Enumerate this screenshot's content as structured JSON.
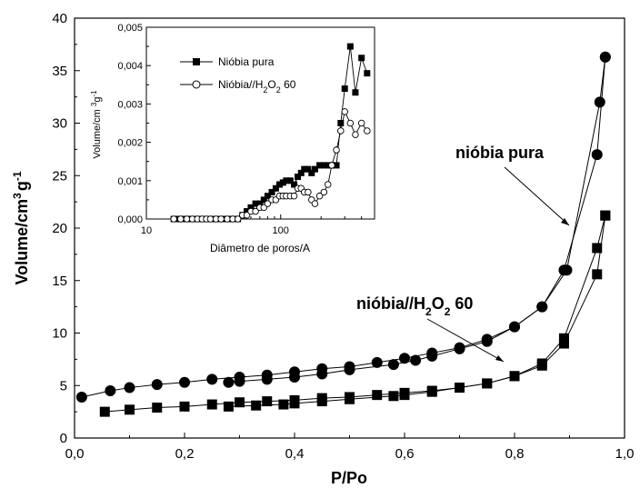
{
  "chart_data": [
    {
      "type": "scatter",
      "title": "",
      "xlabel": "P/Po",
      "ylabel_main": "Volume/cm",
      "ylabel_sup1": "3",
      "ylabel_mid": "g",
      "ylabel_sup2": "-1",
      "xlim": [
        0.0,
        1.0
      ],
      "ylim": [
        0,
        40
      ],
      "xticks": [
        0.0,
        0.2,
        0.4,
        0.6,
        0.8,
        1.0
      ],
      "xtick_labels": [
        "0,0",
        "0,2",
        "0,4",
        "0,6",
        "0,8",
        "1,0"
      ],
      "yticks": [
        0,
        5,
        10,
        15,
        20,
        25,
        30,
        35,
        40
      ],
      "ytick_labels": [
        "0",
        "5",
        "10",
        "15",
        "20",
        "25",
        "30",
        "35",
        "40"
      ],
      "grid": false,
      "series": [
        {
          "name": "nióbia pura",
          "marker": "circle-filled",
          "adsorption": {
            "x": [
              0.013,
              0.065,
              0.1,
              0.15,
              0.2,
              0.25,
              0.3,
              0.35,
              0.4,
              0.45,
              0.5,
              0.55,
              0.6,
              0.65,
              0.7,
              0.75,
              0.8,
              0.85,
              0.89,
              0.95,
              0.965
            ],
            "y": [
              3.9,
              4.5,
              4.8,
              5.1,
              5.3,
              5.6,
              5.8,
              6.0,
              6.3,
              6.6,
              6.8,
              7.2,
              7.6,
              8.1,
              8.6,
              9.4,
              10.6,
              12.5,
              16.0,
              27.0,
              36.3
            ]
          },
          "desorption": {
            "x": [
              0.965,
              0.955,
              0.895,
              0.85,
              0.8,
              0.75,
              0.7,
              0.65,
              0.62,
              0.58,
              0.5,
              0.45,
              0.4,
              0.35,
              0.3,
              0.28
            ],
            "y": [
              36.3,
              32.0,
              16.0,
              12.5,
              10.6,
              9.2,
              8.5,
              7.8,
              7.4,
              7.0,
              6.5,
              6.1,
              5.8,
              5.6,
              5.4,
              5.3
            ]
          },
          "annotation": "nióbia pura"
        },
        {
          "name": "nióbia//H2O2 60",
          "marker": "square-filled",
          "adsorption": {
            "x": [
              0.055,
              0.1,
              0.15,
              0.2,
              0.25,
              0.3,
              0.35,
              0.4,
              0.45,
              0.5,
              0.55,
              0.6,
              0.65,
              0.7,
              0.75,
              0.8,
              0.85,
              0.89,
              0.95,
              0.965
            ],
            "y": [
              2.5,
              2.7,
              2.9,
              3.0,
              3.2,
              3.4,
              3.5,
              3.6,
              3.8,
              3.9,
              4.1,
              4.3,
              4.5,
              4.8,
              5.2,
              5.9,
              7.1,
              9.5,
              18.1,
              21.2
            ]
          },
          "desorption": {
            "x": [
              0.965,
              0.95,
              0.89,
              0.85,
              0.8,
              0.75,
              0.7,
              0.65,
              0.6,
              0.58,
              0.5,
              0.45,
              0.4,
              0.38,
              0.33,
              0.28
            ],
            "y": [
              21.2,
              15.6,
              9.0,
              6.9,
              5.9,
              5.2,
              4.8,
              4.4,
              4.1,
              4.0,
              3.7,
              3.5,
              3.3,
              3.2,
              3.1,
              3.0
            ]
          },
          "annotation": "nióbia//H2O2 60"
        }
      ]
    },
    {
      "type": "scatter",
      "title": "",
      "xlabel": "Diâmetro de poros/A",
      "ylabel": "Volume/cm 3g-1",
      "xscale": "log",
      "xlim": [
        10,
        500
      ],
      "ylim": [
        0.0,
        0.005
      ],
      "xtick_labels": [
        "10",
        "100"
      ],
      "ytick_labels": [
        "0,000",
        "0,001",
        "0,002",
        "0,003",
        "0,004",
        "0,005"
      ],
      "legend_placement": "top-left",
      "series": [
        {
          "name": "Nióbia pura",
          "marker": "square-filled",
          "x": [
            16,
            17,
            18,
            20,
            22,
            24,
            26,
            28,
            30,
            33,
            36,
            40,
            44,
            48,
            52,
            56,
            60,
            65,
            70,
            75,
            80,
            86,
            92,
            98,
            104,
            110,
            118,
            126,
            134,
            142,
            150,
            160,
            170,
            180,
            195,
            210,
            225,
            240,
            260,
            280,
            300,
            330,
            360,
            400,
            440
          ],
          "y": [
            0.0,
            0.0,
            0.0,
            0.0,
            0.0,
            0.0,
            0.0,
            0.0,
            0.0,
            0.0,
            0.0,
            0.0,
            0.0,
            0.0,
            0.0001,
            0.0002,
            0.0003,
            0.0004,
            0.0004,
            0.0005,
            0.0006,
            0.0007,
            0.0008,
            0.0009,
            0.00095,
            0.001,
            0.001,
            0.0009,
            0.0011,
            0.0012,
            0.0013,
            0.0013,
            0.0012,
            0.0013,
            0.0014,
            0.0014,
            0.0014,
            0.0014,
            0.0014,
            0.0025,
            0.0034,
            0.0045,
            0.0033,
            0.0042,
            0.0038
          ]
        },
        {
          "name": "Nióbia//H2O2 60",
          "marker": "circle-open",
          "x": [
            16,
            18,
            20,
            22,
            24,
            26,
            28,
            30,
            33,
            36,
            40,
            44,
            48,
            52,
            56,
            60,
            65,
            70,
            75,
            80,
            86,
            92,
            98,
            104,
            110,
            118,
            126,
            134,
            142,
            150,
            160,
            170,
            180,
            195,
            210,
            225,
            240,
            260,
            280,
            300,
            330,
            360,
            400,
            440
          ],
          "y": [
            0.0,
            0.0,
            0.0,
            0.0,
            0.0,
            0.0,
            0.0,
            0.0,
            0.0,
            0.0,
            0.0,
            0.0,
            0.0,
            0.0001,
            0.0001,
            0.0002,
            0.0002,
            0.0003,
            0.0003,
            0.0004,
            0.0005,
            0.0005,
            0.0006,
            0.0006,
            0.0006,
            0.0006,
            0.0006,
            0.0008,
            0.0008,
            0.0007,
            0.0007,
            0.0005,
            0.0004,
            0.0006,
            0.0007,
            0.0009,
            0.0014,
            0.0018,
            0.0023,
            0.0028,
            0.0025,
            0.0022,
            0.0025,
            0.0023
          ]
        }
      ]
    }
  ]
}
